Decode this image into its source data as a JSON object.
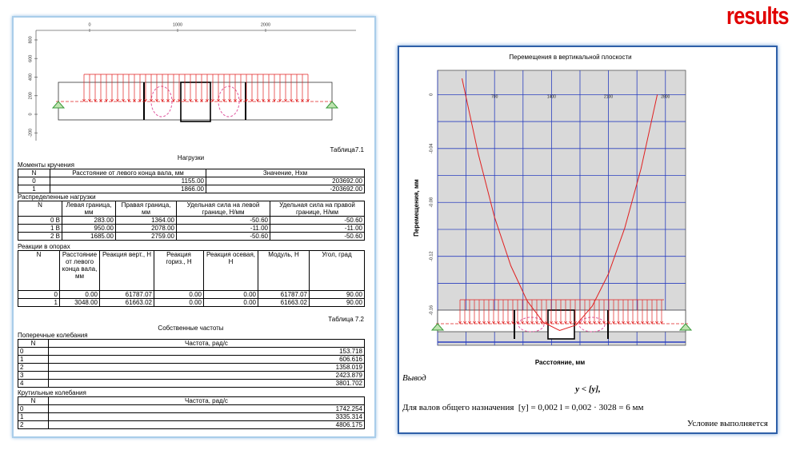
{
  "title": "results",
  "left_panel": {
    "drawing": {
      "xticks": [
        0,
        1000,
        2000
      ],
      "yticks": [
        800,
        600,
        400,
        200,
        0,
        -200
      ]
    },
    "caption1": "Таблица7.1",
    "loads_title": "Нагрузки",
    "tables": [
      {
        "title": "Моменты кручения",
        "header": [
          "N",
          "Расстояние от левого конца вала, мм",
          "Значение, Нхм"
        ],
        "rows": [
          [
            "0",
            "1155.00",
            "203692.00"
          ],
          [
            "1",
            "1866.00",
            "-203692.00"
          ]
        ]
      },
      {
        "title": "Распределенные нагрузки",
        "header": [
          "N",
          "Левая граница, мм",
          "Правая граница, мм",
          "Удельная сила на левой границе, Н/мм",
          "Удельная сила на правой границе, Н/мм"
        ],
        "rows": [
          [
            "0 В",
            "283.00",
            "1364.00",
            "-50.60",
            "-50.60"
          ],
          [
            "1 В",
            "950.00",
            "2078.00",
            "-11.00",
            "-11.00"
          ],
          [
            "2 В",
            "1685.00",
            "2759.00",
            "-50.60",
            "-50.60"
          ]
        ]
      },
      {
        "title": "Реакции в опорах",
        "header": [
          "N",
          "Расстояние от левого конца вала, мм",
          "Реакция верт., Н",
          "Реакция гориз., Н",
          "Реакция осевая, Н",
          "Модуль, Н",
          "Угол, град"
        ],
        "rows": [
          [
            "0",
            "0.00",
            "61787.07",
            "0.00",
            "0.00",
            "61787.07",
            "90.00"
          ],
          [
            "1",
            "3048.00",
            "61663.02",
            "0.00",
            "0.00",
            "61663.02",
            "90.00"
          ]
        ]
      },
      {
        "title": "Поперечные колебания",
        "header": [
          "N",
          "Частота, рад/с"
        ],
        "rows": [
          [
            "0",
            "153.718"
          ],
          [
            "1",
            "606.616"
          ],
          [
            "2",
            "1358.019"
          ],
          [
            "3",
            "2423.879"
          ],
          [
            "4",
            "3801.702"
          ]
        ]
      },
      {
        "title": "Крутильные колебания",
        "header": [
          "N",
          "Частота, рад/с"
        ],
        "rows": [
          [
            "0",
            "1742.254"
          ],
          [
            "1",
            "3335.314"
          ],
          [
            "2",
            "4806.175"
          ]
        ]
      }
    ],
    "caption2": "Таблица 7.2",
    "freq_title": "Собственные частоты"
  },
  "right_panel": {
    "chart": {
      "type": "line",
      "title": "Перемещения в вертикальной плоскости",
      "x_label": "Расстояние, мм",
      "y_label": "Перемещения, мм",
      "xlim": [
        0,
        3048
      ],
      "ylim": [
        -0.186,
        0.018
      ],
      "xticks": [
        0,
        700,
        1400,
        2100,
        2800
      ],
      "yticks": [
        0,
        -0.04,
        -0.08,
        -0.12,
        -0.16
      ],
      "color": "#e02020",
      "x": [
        300,
        500,
        700,
        900,
        1100,
        1300,
        1500,
        1700,
        1900,
        2100,
        2300,
        2500,
        2700
      ],
      "y": [
        0.012,
        -0.044,
        -0.091,
        -0.127,
        -0.153,
        -0.169,
        -0.175,
        -0.171,
        -0.157,
        -0.133,
        -0.099,
        -0.055,
        0.0
      ]
    },
    "conclusion_title": "Вывод",
    "formula": "y < [y],",
    "criterion": "Для валов общего назначения  [y] = 0,002 l = 0,002 · 3028 = 6 мм",
    "result": "Условие выполняется"
  }
}
